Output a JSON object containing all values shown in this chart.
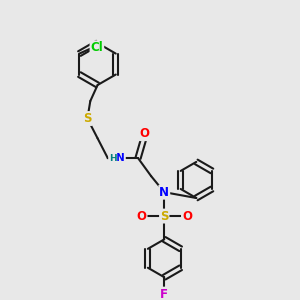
{
  "bg_color": "#e8e8e8",
  "bond_color": "#1a1a1a",
  "bond_width": 1.5,
  "atom_colors": {
    "Cl": "#00cc00",
    "S": "#ccaa00",
    "N": "#0000ff",
    "O": "#ff0000",
    "F": "#cc00cc",
    "H": "#008080",
    "C": "#1a1a1a"
  },
  "font_size_atom": 8.5
}
